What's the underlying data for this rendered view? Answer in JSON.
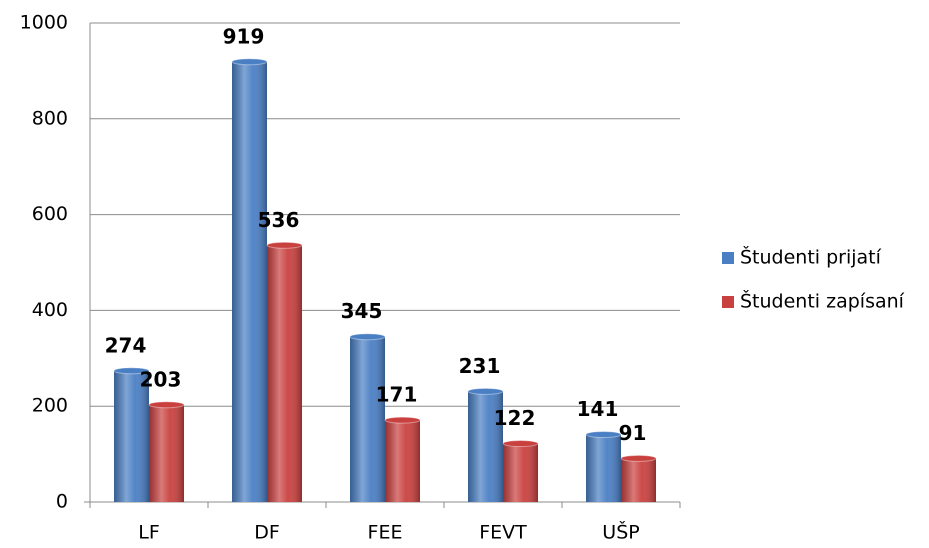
{
  "chart_data": {
    "type": "bar",
    "categories": [
      "LF",
      "DF",
      "FEE",
      "FEVT",
      "UŠP"
    ],
    "series": [
      {
        "name": "Študenti prijatí",
        "color": "#4a7fc4",
        "values": [
          274,
          919,
          345,
          231,
          141
        ]
      },
      {
        "name": "Študenti zapísaní",
        "color": "#c9413f",
        "values": [
          203,
          536,
          171,
          122,
          91
        ]
      }
    ],
    "ylim": [
      0,
      1000
    ],
    "yticks": [
      0,
      200,
      400,
      600,
      800,
      1000
    ],
    "grid": true,
    "legend": "right"
  }
}
